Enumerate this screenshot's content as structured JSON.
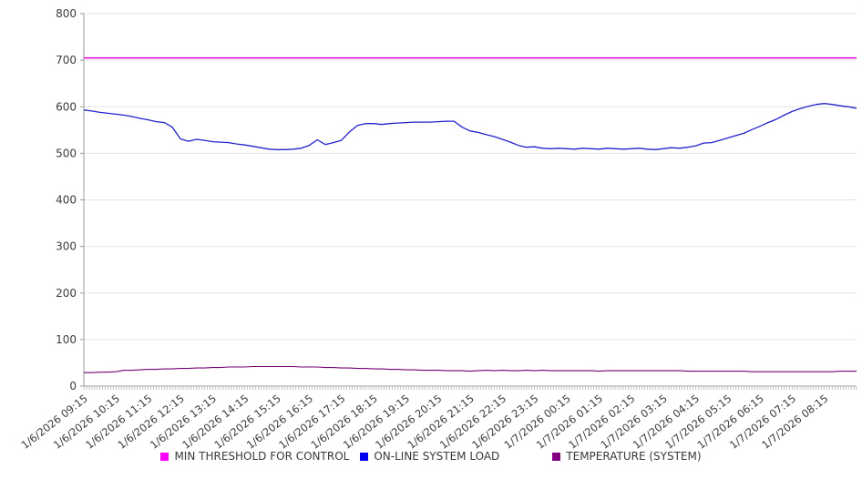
{
  "chart_data": {
    "type": "line",
    "title": "",
    "xlabel": "",
    "ylabel": "",
    "grid": "horizontal",
    "legend_position": "bottom-center",
    "n_points": 97,
    "y_axis": {
      "min": 0,
      "max": 800,
      "tick_step": 100,
      "ticks": [
        0,
        100,
        200,
        300,
        400,
        500,
        600,
        700,
        800
      ]
    },
    "x_axis": {
      "minor_tick_count": 288,
      "labels": [
        "1/6/2026 09:15",
        "1/6/2026 10:15",
        "1/6/2026 11:15",
        "1/6/2026 12:15",
        "1/6/2026 13:15",
        "1/6/2026 14:15",
        "1/6/2026 15:15",
        "1/6/2026 16:15",
        "1/6/2026 17:15",
        "1/6/2026 18:15",
        "1/6/2026 19:15",
        "1/6/2026 20:15",
        "1/6/2026 21:15",
        "1/6/2026 22:15",
        "1/6/2026 23:15",
        "1/7/2026 00:15",
        "1/7/2026 01:15",
        "1/7/2026 02:15",
        "1/7/2026 03:15",
        "1/7/2026 04:15",
        "1/7/2026 05:15",
        "1/7/2026 06:15",
        "1/7/2026 07:15",
        "1/7/2026 08:15"
      ]
    },
    "series": [
      {
        "id": "min-threshold",
        "name": "MIN THRESHOLD FOR CONTROL",
        "color": "#DD00DD",
        "legend_color": "#FF00FF",
        "width": 1.5,
        "constant": 705
      },
      {
        "id": "online-system-load",
        "name": "ON-LINE SYSTEM LOAD",
        "color": "#2222CC",
        "legend_color": "#0000EE",
        "width": 1.3,
        "values": [
          593,
          591,
          588,
          586,
          584,
          582,
          579,
          575,
          572,
          568,
          566,
          556,
          531,
          526,
          530,
          528,
          525,
          524,
          523,
          520,
          518,
          515,
          512,
          509,
          508,
          508,
          509,
          511,
          517,
          529,
          519,
          523,
          528,
          546,
          560,
          564,
          564,
          562,
          564,
          565,
          566,
          567,
          567,
          567,
          568,
          569,
          569,
          556,
          548,
          545,
          540,
          536,
          530,
          524,
          517,
          513,
          514,
          511,
          510,
          511,
          510,
          509,
          511,
          510,
          509,
          511,
          510,
          509,
          510,
          511,
          509,
          508,
          510,
          512,
          511,
          513,
          516,
          522,
          523,
          528,
          533,
          538,
          543,
          551,
          558,
          566,
          573,
          582,
          590,
          596,
          601,
          605,
          607,
          605,
          602,
          600,
          597
        ]
      },
      {
        "id": "temperature-system",
        "name": "TEMPERATURE (SYSTEM)",
        "color": "#760076",
        "legend_color": "#800080",
        "width": 1.1,
        "values": [
          29,
          29,
          30,
          30,
          31,
          34,
          34,
          35,
          36,
          36,
          37,
          37,
          38,
          38,
          39,
          39,
          40,
          40,
          41,
          41,
          41,
          42,
          42,
          42,
          42,
          42,
          42,
          41,
          41,
          41,
          40,
          40,
          39,
          39,
          38,
          38,
          37,
          37,
          36,
          36,
          35,
          35,
          34,
          34,
          34,
          33,
          33,
          33,
          32,
          33,
          34,
          33,
          34,
          33,
          33,
          34,
          33,
          34,
          33,
          33,
          33,
          33,
          33,
          33,
          32,
          33,
          33,
          33,
          33,
          33,
          33,
          33,
          33,
          33,
          33,
          32,
          32,
          32,
          32,
          32,
          32,
          32,
          32,
          31,
          31,
          31,
          31,
          31,
          31,
          31,
          31,
          31,
          31,
          31,
          32,
          32,
          32
        ]
      }
    ],
    "colors": {
      "axis": "#9a9a9a",
      "gridline": "#e3e3e3",
      "minor_tick": "#b5b5b5",
      "tick_label": "#3c3c3c"
    }
  }
}
